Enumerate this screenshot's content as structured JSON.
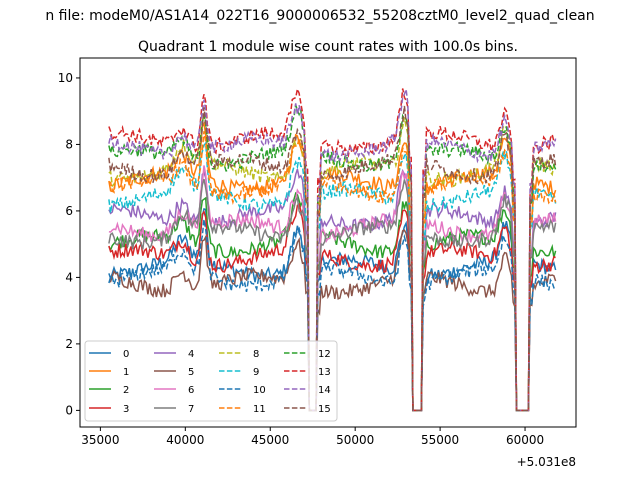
{
  "suptitle": "n file: modeM0/AS1A14_022T16_9000006532_55208cztM0_level2_quad_clean",
  "chart_data": {
    "type": "line",
    "title": "Quadrant 1 module wise count rates with 100.0s bins.",
    "xlabel": "",
    "ylabel": "",
    "offset_label": "+5.031e8",
    "xlim": [
      33800,
      63000
    ],
    "ylim": [
      -0.5,
      10.6
    ],
    "xticks": [
      35000,
      40000,
      45000,
      50000,
      55000,
      60000
    ],
    "xtick_labels": [
      "35000",
      "40000",
      "45000",
      "50000",
      "55000",
      "60000"
    ],
    "yticks": [
      0,
      2,
      4,
      6,
      8,
      10
    ],
    "ytick_labels": [
      "0",
      "2",
      "4",
      "6",
      "8",
      "10"
    ],
    "grid": false,
    "legend_position": "lower-left",
    "time_range": [
      35500,
      61800
    ],
    "gaps": [
      [
        47300,
        47700
      ],
      [
        53400,
        53900
      ],
      [
        59500,
        60200
      ]
    ],
    "series": [
      {
        "name": "0",
        "style": "solid",
        "color": "#1f77b4",
        "level": 4.3
      },
      {
        "name": "1",
        "style": "solid",
        "color": "#ff7f0e",
        "level": 6.9
      },
      {
        "name": "2",
        "style": "solid",
        "color": "#2ca02c",
        "level": 5.0
      },
      {
        "name": "3",
        "style": "solid",
        "color": "#d62728",
        "level": 4.6
      },
      {
        "name": "4",
        "style": "solid",
        "color": "#9467bd",
        "level": 5.8
      },
      {
        "name": "5",
        "style": "solid",
        "color": "#8c564b",
        "level": 3.8
      },
      {
        "name": "6",
        "style": "solid",
        "color": "#e377c2",
        "level": 5.5
      },
      {
        "name": "7",
        "style": "solid",
        "color": "#7f7f7f",
        "level": 5.3
      },
      {
        "name": "8",
        "style": "dashed",
        "color": "#bcbd22",
        "level": 7.2
      },
      {
        "name": "9",
        "style": "dashed",
        "color": "#17becf",
        "level": 6.4
      },
      {
        "name": "10",
        "style": "dashed",
        "color": "#1f77b4",
        "level": 4.0
      },
      {
        "name": "11",
        "style": "dashed",
        "color": "#ff7f0e",
        "level": 6.7
      },
      {
        "name": "12",
        "style": "dashed",
        "color": "#2ca02c",
        "level": 7.6
      },
      {
        "name": "13",
        "style": "dashed",
        "color": "#d62728",
        "level": 8.1
      },
      {
        "name": "14",
        "style": "dashed",
        "color": "#9467bd",
        "level": 7.9
      },
      {
        "name": "15",
        "style": "dashed",
        "color": "#8c564b",
        "level": 7.3
      }
    ]
  }
}
